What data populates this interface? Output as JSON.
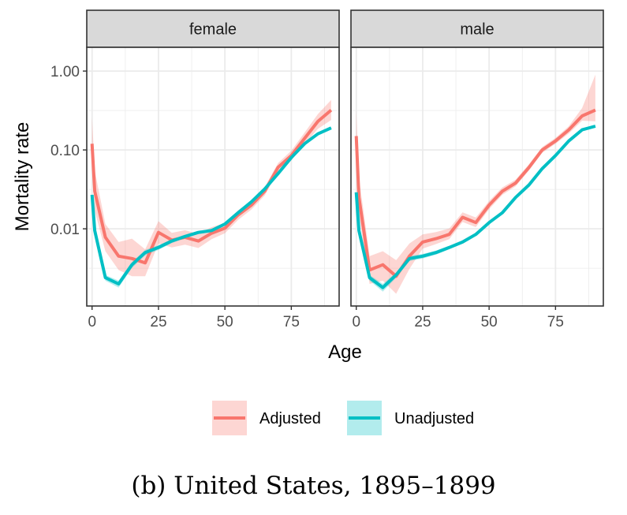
{
  "caption": "(b) United States, 1895–1899",
  "colors": {
    "adjusted": "#F8766D",
    "adjusted_band": "#F8766D",
    "unadjusted": "#00BFC4",
    "unadjusted_band": "#00BFC4",
    "strip_fill": "#D9D9D9",
    "grid": "#EBEBEB"
  },
  "chart_data": {
    "type": "line",
    "facets": [
      "female",
      "male"
    ],
    "xlabel": "Age",
    "ylabel": "Mortality rate",
    "x_scale": "linear",
    "y_scale": "log10",
    "xlim": [
      -2,
      93
    ],
    "ylim": [
      0.00105,
      2.0
    ],
    "x_ticks": [
      0,
      25,
      50,
      75
    ],
    "x_tick_labels": [
      "0",
      "25",
      "50",
      "75"
    ],
    "y_ticks": [
      0.01,
      0.1,
      1.0
    ],
    "y_tick_labels": [
      "0.01",
      "0.10",
      "1.00"
    ],
    "grid": true,
    "legend_position": "bottom",
    "legend": [
      {
        "key": "adjusted",
        "label": "Adjusted"
      },
      {
        "key": "unadjusted",
        "label": "Unadjusted"
      }
    ],
    "x": [
      0,
      1,
      5,
      10,
      15,
      20,
      25,
      30,
      35,
      40,
      45,
      50,
      55,
      60,
      65,
      70,
      75,
      80,
      85,
      90
    ],
    "panels": [
      {
        "facet": "female",
        "series": [
          {
            "key": "adjusted",
            "name": "Adjusted",
            "values": [
              0.12,
              0.03,
              0.0078,
              0.0045,
              0.0042,
              0.0037,
              0.009,
              0.0072,
              0.0078,
              0.007,
              0.0088,
              0.0102,
              0.015,
              0.02,
              0.03,
              0.06,
              0.085,
              0.14,
              0.23,
              0.32
            ],
            "lower": [
              0.06,
              0.017,
              0.0052,
              0.003,
              0.0025,
              0.0025,
              0.0065,
              0.0058,
              0.0063,
              0.0057,
              0.0074,
              0.0088,
              0.013,
              0.0176,
              0.0265,
              0.053,
              0.074,
              0.118,
              0.185,
              0.24
            ],
            "upper": [
              0.26,
              0.055,
              0.0115,
              0.0068,
              0.0075,
              0.0055,
              0.0125,
              0.0089,
              0.0096,
              0.0086,
              0.0105,
              0.0118,
              0.0172,
              0.0228,
              0.034,
              0.068,
              0.098,
              0.166,
              0.285,
              0.43
            ]
          },
          {
            "key": "unadjusted",
            "name": "Unadjusted",
            "values": [
              0.027,
              0.0095,
              0.0024,
              0.002,
              0.0035,
              0.005,
              0.0058,
              0.007,
              0.008,
              0.009,
              0.0095,
              0.0115,
              0.016,
              0.022,
              0.032,
              0.05,
              0.08,
              0.12,
              0.16,
              0.19
            ],
            "lower": [
              0.025,
              0.0088,
              0.0022,
              0.0018,
              0.0032,
              0.0046,
              0.0054,
              0.0066,
              0.0076,
              0.0086,
              0.0091,
              0.011,
              0.0154,
              0.0213,
              0.0311,
              0.0488,
              0.0782,
              0.117,
              0.155,
              0.183
            ],
            "upper": [
              0.029,
              0.0102,
              0.0026,
              0.0022,
              0.0038,
              0.0054,
              0.0062,
              0.0074,
              0.0084,
              0.0094,
              0.0099,
              0.012,
              0.0166,
              0.0227,
              0.0329,
              0.0512,
              0.0818,
              0.123,
              0.165,
              0.197
            ]
          }
        ]
      },
      {
        "facet": "male",
        "series": [
          {
            "key": "adjusted",
            "name": "Adjusted",
            "values": [
              0.15,
              0.025,
              0.003,
              0.0035,
              0.0025,
              0.0045,
              0.0068,
              0.0075,
              0.0085,
              0.014,
              0.012,
              0.02,
              0.03,
              0.038,
              0.06,
              0.1,
              0.13,
              0.18,
              0.27,
              0.32
            ],
            "lower": [
              0.075,
              0.015,
              0.002,
              0.0022,
              0.0015,
              0.0031,
              0.0056,
              0.0064,
              0.0074,
              0.0122,
              0.0105,
              0.0178,
              0.027,
              0.0345,
              0.055,
              0.092,
              0.12,
              0.162,
              0.235,
              0.23
            ],
            "upper": [
              0.32,
              0.045,
              0.0045,
              0.0052,
              0.004,
              0.0065,
              0.0085,
              0.0091,
              0.0101,
              0.0162,
              0.0139,
              0.0225,
              0.0335,
              0.042,
              0.066,
              0.109,
              0.142,
              0.2,
              0.34,
              0.9
            ]
          },
          {
            "key": "unadjusted",
            "name": "Unadjusted",
            "values": [
              0.029,
              0.0095,
              0.0024,
              0.0018,
              0.0026,
              0.0042,
              0.0045,
              0.005,
              0.0058,
              0.0068,
              0.0085,
              0.012,
              0.016,
              0.025,
              0.036,
              0.058,
              0.085,
              0.13,
              0.18,
              0.2
            ],
            "lower": [
              0.027,
              0.0088,
              0.0022,
              0.0016,
              0.0024,
              0.0039,
              0.0042,
              0.0047,
              0.0055,
              0.0065,
              0.0081,
              0.0115,
              0.0154,
              0.0243,
              0.0352,
              0.0566,
              0.083,
              0.127,
              0.175,
              0.193
            ],
            "upper": [
              0.031,
              0.0102,
              0.0026,
              0.002,
              0.0028,
              0.0045,
              0.0048,
              0.0053,
              0.0061,
              0.0071,
              0.0089,
              0.0125,
              0.0166,
              0.0257,
              0.0368,
              0.0594,
              0.087,
              0.133,
              0.185,
              0.207
            ]
          }
        ]
      }
    ]
  }
}
